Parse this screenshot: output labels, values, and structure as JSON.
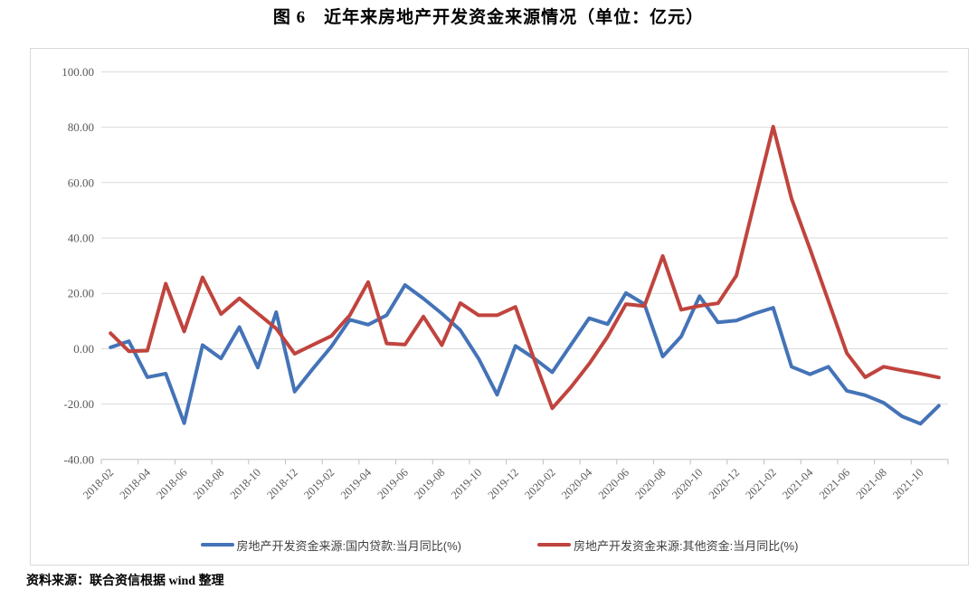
{
  "title": "图 6　近年来房地产开发资金来源情况（单位：亿元）",
  "footer": "资料来源：联合资信根据 wind 整理",
  "chart_data": {
    "type": "line",
    "x": [
      "2018-02",
      "2018-03",
      "2018-04",
      "2018-05",
      "2018-06",
      "2018-07",
      "2018-08",
      "2018-09",
      "2018-10",
      "2018-11",
      "2018-12",
      "2019-01",
      "2019-02",
      "2019-03",
      "2019-04",
      "2019-05",
      "2019-06",
      "2019-07",
      "2019-08",
      "2019-09",
      "2019-10",
      "2019-11",
      "2019-12",
      "2020-01",
      "2020-02",
      "2020-03",
      "2020-04",
      "2020-05",
      "2020-06",
      "2020-07",
      "2020-08",
      "2020-09",
      "2020-10",
      "2020-11",
      "2020-12",
      "2021-01",
      "2021-02",
      "2021-03",
      "2021-04",
      "2021-05",
      "2021-06",
      "2021-07",
      "2021-08",
      "2021-09",
      "2021-10",
      "2021-11"
    ],
    "x_tick_labels": [
      "2018-02",
      "2018-04",
      "2018-06",
      "2018-08",
      "2018-10",
      "2018-12",
      "2019-02",
      "2019-04",
      "2019-06",
      "2019-08",
      "2019-10",
      "2019-12",
      "2020-02",
      "2020-04",
      "2020-06",
      "2020-08",
      "2020-10",
      "2020-12",
      "2021-02",
      "2021-04",
      "2021-06",
      "2021-08",
      "2021-10"
    ],
    "y_ticks": {
      "values": [
        100,
        80,
        60,
        40,
        20,
        0,
        -20,
        -40
      ],
      "labels": [
        "100.00",
        "80.00",
        "60.00",
        "40.00",
        "20.00",
        "0.00",
        "-20.00",
        "-40.00"
      ]
    },
    "ylim": [
      -40,
      100
    ],
    "grid": true,
    "legend_position": "bottom",
    "series": [
      {
        "name": "房地产开发资金来源:国内贷款:当月同比(%)",
        "color": "#4473B7",
        "values": [
          0.5,
          2.7,
          -10.3,
          -9.0,
          -26.9,
          1.3,
          -3.5,
          7.8,
          -6.8,
          13.2,
          -15.5,
          -7.2,
          0.8,
          10.5,
          8.7,
          12.1,
          23.0,
          18.1,
          12.7,
          6.7,
          -3.6,
          -16.6,
          1.0,
          -3.4,
          -8.5,
          1.3,
          11.0,
          8.9,
          20.1,
          16.1,
          -2.8,
          4.4,
          19.0,
          9.5,
          10.2,
          12.7,
          14.8,
          -6.5,
          -9.2,
          -6.5,
          -15.2,
          -16.8,
          -19.5,
          -24.4,
          -27.1,
          -20.6
        ]
      },
      {
        "name": "房地产开发资金来源:其他资金:当月同比(%)",
        "color": "#C0443E",
        "values": [
          5.6,
          -0.9,
          -0.7,
          23.5,
          6.2,
          25.8,
          12.5,
          18.2,
          12.7,
          7.3,
          -1.8,
          1.4,
          4.6,
          12.1,
          24.1,
          1.9,
          1.5,
          11.6,
          1.3,
          16.5,
          12.1,
          12.1,
          15.1,
          -3.6,
          -21.5,
          -14.0,
          -5.5,
          4.3,
          16.1,
          15.4,
          33.5,
          14.1,
          15.5,
          16.4,
          26.4,
          53.3,
          80.2,
          54.2,
          36.0,
          17.3,
          -1.6,
          -10.3,
          -6.5,
          -7.8,
          -9.0,
          -10.4
        ]
      }
    ]
  }
}
